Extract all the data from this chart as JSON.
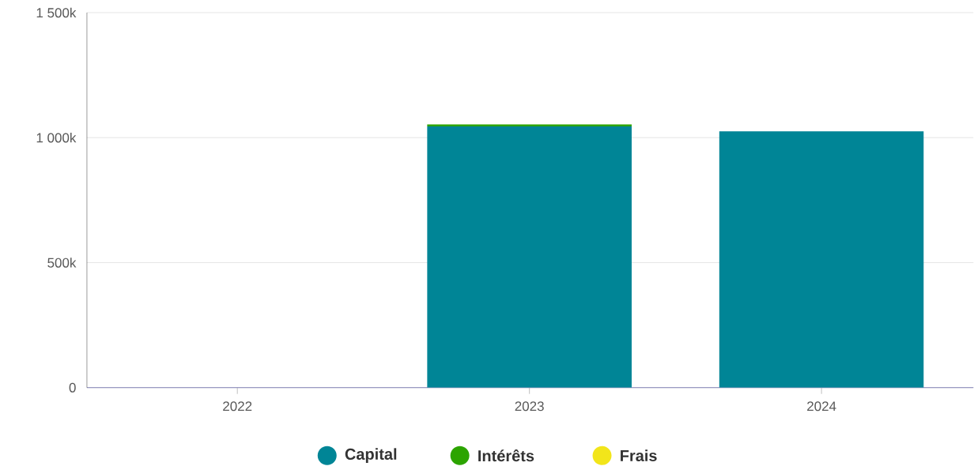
{
  "chart_data": {
    "type": "bar",
    "stacked": true,
    "categories": [
      "2022",
      "2023",
      "2024"
    ],
    "series": [
      {
        "name": "Capital",
        "color": "#008596",
        "values": [
          0,
          1045000,
          1025000
        ]
      },
      {
        "name": "Intérêts",
        "color": "#2ca400",
        "values": [
          0,
          8000,
          0
        ]
      },
      {
        "name": "Frais",
        "color": "#f2e51a",
        "values": [
          0,
          0,
          0
        ]
      }
    ],
    "ylim": [
      0,
      1500000
    ],
    "yticks": [
      {
        "value": 0,
        "label": "0"
      },
      {
        "value": 500000,
        "label": "500k"
      },
      {
        "value": 1000000,
        "label": "1 000k"
      },
      {
        "value": 1500000,
        "label": "1 500k"
      }
    ],
    "grid": "y",
    "legend": "bottom"
  }
}
